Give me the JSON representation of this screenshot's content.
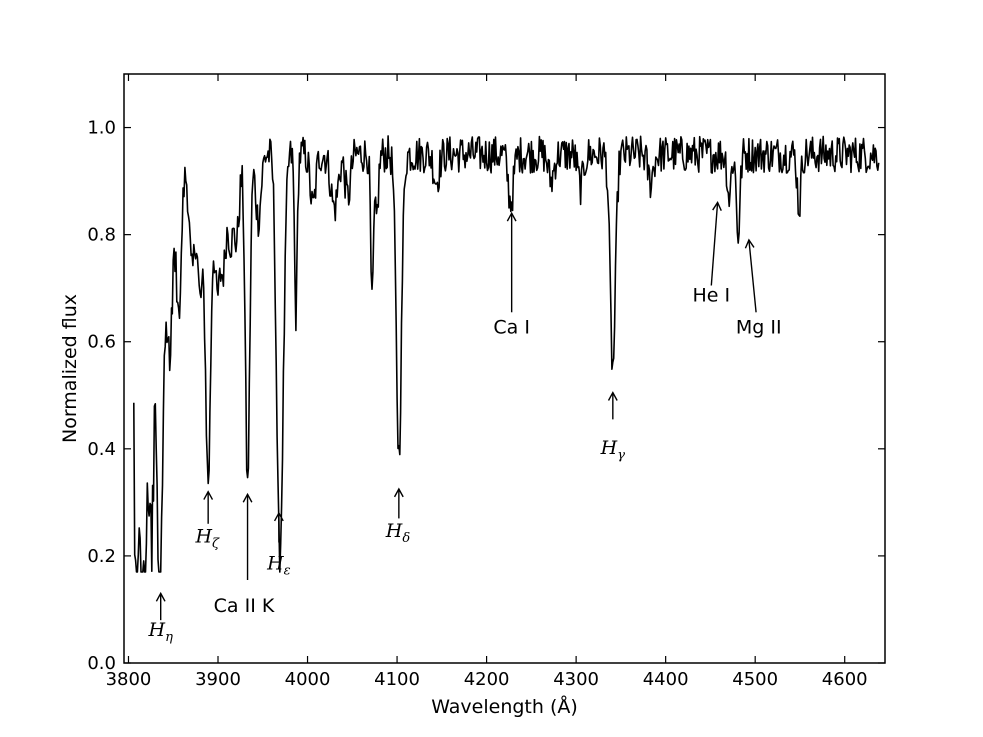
{
  "chart_data": {
    "type": "line",
    "title": "",
    "xlabel": "Wavelength (Å)",
    "ylabel": "Normalized flux",
    "xlim": [
      3795,
      4645
    ],
    "ylim": [
      0.0,
      1.1
    ],
    "xticks": [
      3800,
      3900,
      4000,
      4100,
      4200,
      4300,
      4400,
      4500,
      4600
    ],
    "yticks": [
      0.0,
      0.2,
      0.4,
      0.6,
      0.8,
      1.0
    ],
    "xtick_labels": [
      "3800",
      "3900",
      "4000",
      "4100",
      "4200",
      "4300",
      "4400",
      "4500",
      "4600"
    ],
    "ytick_labels": [
      "0.0",
      "0.2",
      "0.4",
      "0.6",
      "0.8",
      "1.0"
    ],
    "grid": false,
    "legend": "none",
    "line_color": "#000000",
    "series": [
      {
        "x_range": [
          3806,
          4638
        ],
        "continuum": 0.95,
        "noise": 0.035,
        "absorption_lines": [
          {
            "center": 3809,
            "depth": 0.55,
            "width": 3
          },
          {
            "center": 3815,
            "depth": 0.45,
            "width": 3
          },
          {
            "center": 3820,
            "depth": 0.45,
            "width": 3
          },
          {
            "center": 3826,
            "depth": 0.5,
            "width": 2.5
          },
          {
            "center": 3835,
            "depth": 0.76,
            "width": 3.5
          },
          {
            "center": 3846,
            "depth": 0.3,
            "width": 3
          },
          {
            "center": 3856,
            "depth": 0.25,
            "width": 3
          },
          {
            "center": 3871,
            "depth": 0.2,
            "width": 3
          },
          {
            "center": 3880,
            "depth": 0.25,
            "width": 3
          },
          {
            "center": 3889,
            "depth": 0.6,
            "width": 3
          },
          {
            "center": 3899,
            "depth": 0.25,
            "width": 3
          },
          {
            "center": 3906,
            "depth": 0.2,
            "width": 3
          },
          {
            "center": 3914,
            "depth": 0.15,
            "width": 3
          },
          {
            "center": 3921,
            "depth": 0.15,
            "width": 3
          },
          {
            "center": 3933,
            "depth": 0.62,
            "width": 2.5
          },
          {
            "center": 3945,
            "depth": 0.12,
            "width": 3
          },
          {
            "center": 3968,
            "depth": 0.6,
            "width": 3
          },
          {
            "center": 3972,
            "depth": 0.3,
            "width": 3
          },
          {
            "center": 3987,
            "depth": 0.3,
            "width": 1.5
          },
          {
            "center": 4006,
            "depth": 0.1,
            "width": 3
          },
          {
            "center": 4030,
            "depth": 0.1,
            "width": 4
          },
          {
            "center": 4045,
            "depth": 0.08,
            "width": 3
          },
          {
            "center": 4072,
            "depth": 0.28,
            "width": 1.5
          },
          {
            "center": 4077,
            "depth": 0.12,
            "width": 2
          },
          {
            "center": 4102,
            "depth": 0.56,
            "width": 3
          },
          {
            "center": 4144,
            "depth": 0.05,
            "width": 3
          },
          {
            "center": 4227,
            "depth": 0.09,
            "width": 3
          },
          {
            "center": 4272,
            "depth": 0.05,
            "width": 3
          },
          {
            "center": 4305,
            "depth": 0.06,
            "width": 3
          },
          {
            "center": 4341,
            "depth": 0.4,
            "width": 3
          },
          {
            "center": 4383,
            "depth": 0.05,
            "width": 3
          },
          {
            "center": 4471,
            "depth": 0.08,
            "width": 2
          },
          {
            "center": 4481,
            "depth": 0.15,
            "width": 2
          },
          {
            "center": 4549,
            "depth": 0.1,
            "width": 2
          }
        ]
      }
    ],
    "annotations": [
      {
        "kind": "math",
        "base": "H",
        "sub": "η",
        "x": 3836,
        "y": 0.05,
        "arrow": {
          "x": 3836,
          "y_from": 0.08,
          "y_to": 0.13
        }
      },
      {
        "kind": "math",
        "base": "H",
        "sub": "ζ",
        "x": 3888,
        "y": 0.225,
        "arrow": {
          "x": 3889,
          "y_from": 0.26,
          "y_to": 0.32
        }
      },
      {
        "kind": "text",
        "label": "Ca II K",
        "x": 3929,
        "y": 0.095,
        "arrow": {
          "x": 3933,
          "y_from": 0.155,
          "y_to": 0.315
        }
      },
      {
        "kind": "math",
        "base": "H",
        "sub": "ε",
        "x": 3968,
        "y": 0.175,
        "arrow": {
          "x": 3968,
          "y_from": 0.225,
          "y_to": 0.28
        }
      },
      {
        "kind": "math",
        "base": "H",
        "sub": "δ",
        "x": 4101,
        "y": 0.235,
        "arrow": {
          "x": 4102,
          "y_from": 0.27,
          "y_to": 0.325
        }
      },
      {
        "kind": "text",
        "label": "Ca I",
        "x": 4228,
        "y": 0.615,
        "arrow": {
          "x": 4228,
          "y_from": 0.655,
          "y_to": 0.84
        }
      },
      {
        "kind": "math",
        "base": "H",
        "sub": "γ",
        "x": 4341,
        "y": 0.39,
        "arrow": {
          "x": 4341,
          "y_from": 0.455,
          "y_to": 0.505
        }
      },
      {
        "kind": "text",
        "label": "He I",
        "x": 4451,
        "y": 0.675,
        "arrow": {
          "x": 4458,
          "y_from": 0.705,
          "y_to": 0.86
        }
      },
      {
        "kind": "text",
        "label": "Mg II",
        "x": 4504,
        "y": 0.615,
        "arrow": {
          "x": 4493,
          "y_from": 0.655,
          "y_to": 0.79
        }
      }
    ]
  }
}
